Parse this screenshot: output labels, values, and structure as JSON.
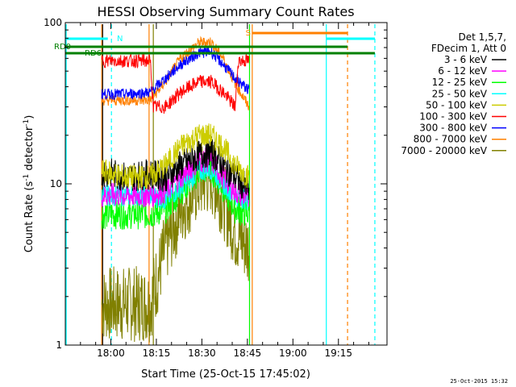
{
  "chart_data": {
    "type": "line",
    "title": "HESSI Observing Summary Count Rates",
    "xlabel": "Start Time (25-Oct-15 17:45:02)",
    "ylabel": "Count Rate (s^-1 detector^-1)",
    "ylabel_main": "Count Rate (s",
    "ylabel_sup1": "-1",
    "ylabel_mid": " detector",
    "ylabel_sup2": "-1",
    "ylabel_end": ")",
    "y_scale": "log",
    "ylim": [
      1,
      100
    ],
    "xlim_minutes_after_1745": [
      0,
      106
    ],
    "x_tick_labels": [
      "18:00",
      "18:15",
      "18:30",
      "18:45",
      "19:00",
      "19:15"
    ],
    "x_tick_minutes_after_1745": [
      15,
      30,
      45,
      60,
      75,
      90
    ],
    "y_tick_labels": [
      "1",
      "10",
      "100"
    ],
    "y_tick_values": [
      1,
      10,
      100
    ],
    "legend": {
      "header_lines": [
        "Det 1,5,7,",
        "FDecim 1, Att 0"
      ],
      "placement": "right outside",
      "entries": [
        {
          "label": "3 - 6 keV",
          "color": "#000000"
        },
        {
          "label": "6 - 12 keV",
          "color": "#ff00ff"
        },
        {
          "label": "12 - 25 keV",
          "color": "#00ff00"
        },
        {
          "label": "25 - 50 keV",
          "color": "#00ffff"
        },
        {
          "label": "50 - 100 keV",
          "color": "#cccc00"
        },
        {
          "label": "100 - 300 keV",
          "color": "#ff0000"
        },
        {
          "label": "300 - 800 keV",
          "color": "#0000ff"
        },
        {
          "label": "800 - 7000 keV",
          "color": "#ff8000"
        },
        {
          "label": "7000 - 20000 keV",
          "color": "#808000"
        }
      ]
    },
    "series": [
      {
        "name": "3 - 6 keV",
        "color": "#000000",
        "x": [
          12,
          20,
          28,
          33,
          38,
          44,
          48,
          52,
          56,
          60.5
        ],
        "y": [
          12,
          11,
          11.5,
          11,
          13,
          15,
          16,
          13,
          11,
          9
        ]
      },
      {
        "name": "6 - 12 keV",
        "color": "#ff00ff",
        "x": [
          12,
          20,
          28,
          33,
          38,
          44,
          48,
          52,
          56,
          60.5
        ],
        "y": [
          8.5,
          8.5,
          8.5,
          9,
          11,
          14,
          14,
          11,
          9,
          8
        ]
      },
      {
        "name": "12 - 25 keV",
        "color": "#00ff00",
        "x": [
          12,
          20,
          28,
          33,
          38,
          44,
          48,
          52,
          56,
          60.5
        ],
        "y": [
          6.5,
          6.5,
          6.5,
          7,
          9,
          12,
          12.5,
          9.5,
          7,
          6.5
        ]
      },
      {
        "name": "25 - 50 keV",
        "color": "#00ffff",
        "x": [
          12,
          20,
          28,
          33,
          38,
          44,
          48,
          52,
          56,
          60.5
        ],
        "y": [
          8.5,
          8.5,
          8.5,
          8,
          9.5,
          12,
          12.5,
          10,
          8.5,
          8
        ]
      },
      {
        "name": "50 - 100 keV",
        "color": "#cccc00",
        "x": [
          12,
          20,
          28,
          33,
          38,
          44,
          48,
          52,
          56,
          60.5
        ],
        "y": [
          12,
          11,
          11,
          13,
          17,
          20,
          20,
          17,
          13,
          11
        ]
      },
      {
        "name": "100 - 300 keV",
        "color": "#ff0000",
        "x": [
          12,
          20,
          28,
          29,
          33,
          38,
          44,
          48,
          52,
          56,
          57,
          60.5
        ],
        "y": [
          58,
          58,
          58,
          30,
          30,
          37,
          43,
          43,
          37,
          30,
          58,
          58
        ]
      },
      {
        "name": "300 - 800 keV",
        "color": "#0000ff",
        "x": [
          12,
          20,
          28,
          33,
          38,
          44,
          48,
          52,
          56,
          60.5
        ],
        "y": [
          36,
          36,
          37,
          45,
          55,
          65,
          66,
          55,
          45,
          38
        ]
      },
      {
        "name": "800 - 7000 keV",
        "color": "#ff8000",
        "x": [
          12,
          20,
          28,
          33,
          38,
          44,
          48,
          52,
          56,
          60.5
        ],
        "y": [
          33,
          33,
          33,
          43,
          60,
          75,
          76,
          60,
          42,
          30
        ]
      },
      {
        "name": "7000 - 20000 keV",
        "color": "#808000",
        "x": [
          12,
          20,
          28,
          33,
          38,
          44,
          48,
          52,
          56,
          60.5
        ],
        "y": [
          1.8,
          1.8,
          1.8,
          4,
          7,
          10,
          11,
          8,
          5,
          4
        ]
      }
    ],
    "annotations": {
      "rd0_label": "RD0",
      "rd6_label": "RD6",
      "n_label": "N",
      "s_label": "S"
    }
  },
  "footer": {
    "timestamp": "25-Oct-2015 15:32"
  }
}
